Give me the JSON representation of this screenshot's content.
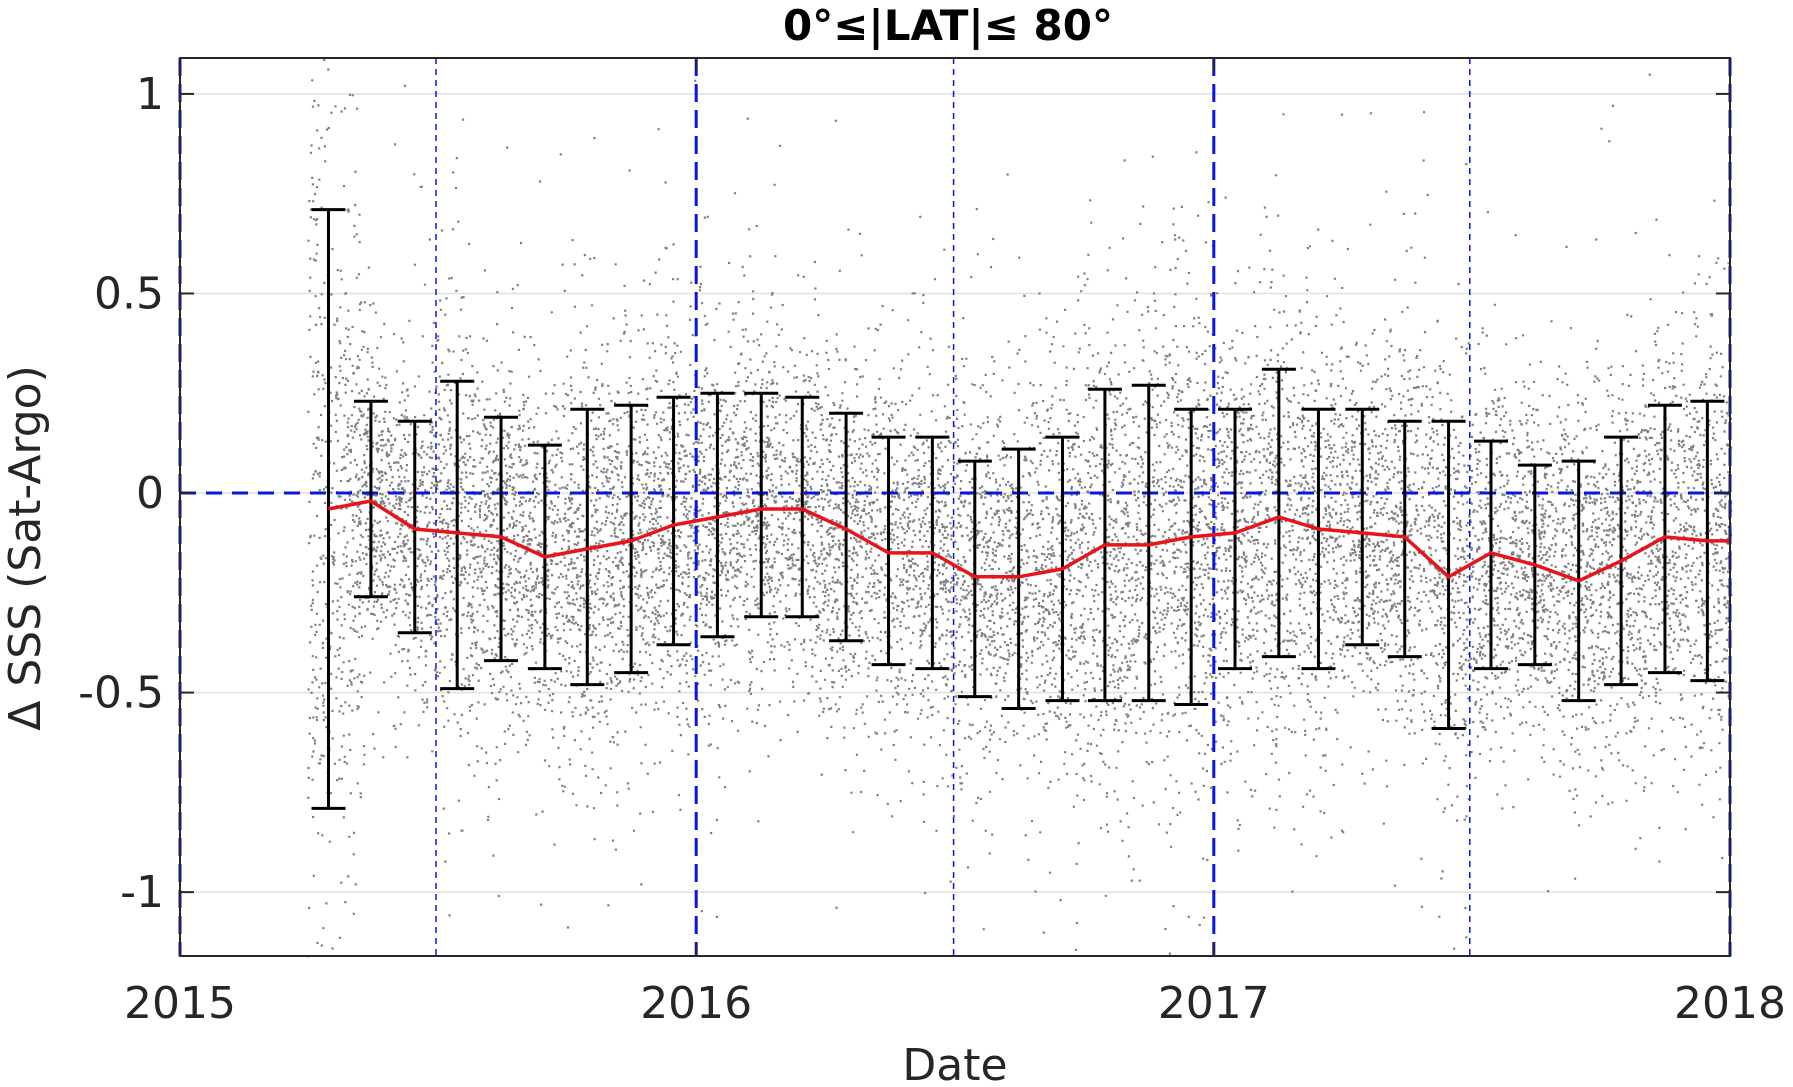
{
  "chart_data": {
    "type": "scatter",
    "title": "0°≤|LAT|≤ 80°",
    "xlabel": "Date",
    "ylabel": "Δ SSS (Sat-Argo)",
    "xlim": [
      "2015-01-01",
      "2018-01-01"
    ],
    "ylim": [
      -1.16,
      1.09
    ],
    "x_ticks": [
      "2015",
      "2016",
      "2017",
      "2018"
    ],
    "y_ticks": [
      1,
      0.5,
      0,
      -0.5,
      -1
    ],
    "y_tick_labels": [
      "1",
      "0.5",
      "0",
      "-0.5",
      "-1"
    ],
    "grid": true,
    "reference_line_y": 0,
    "year_boundaries": [
      "2015-01-01",
      "2016-01-01",
      "2017-01-01",
      "2018-01-01"
    ],
    "mid_year_lines": [
      "2015-07-01",
      "2016-07-01",
      "2017-07-01"
    ],
    "colors": {
      "points": "#808080",
      "mean_line": "#e8141a",
      "error_bars": "#000000",
      "reference_lines": "#0a14e6",
      "grid": "#e0e0e0",
      "axes": "#262626"
    },
    "scatter_x_range": [
      "2015-04-01",
      "2018-01-01"
    ],
    "series": [
      {
        "type": "line_with_error_bars",
        "x": [
          "2015-04-16",
          "2015-05-16",
          "2015-06-16",
          "2015-07-16",
          "2015-08-16",
          "2015-09-16",
          "2015-10-16",
          "2015-11-16",
          "2015-12-16",
          "2016-01-16",
          "2016-02-16",
          "2016-03-16",
          "2016-04-16",
          "2016-05-16",
          "2016-06-16",
          "2016-07-16",
          "2016-08-16",
          "2016-09-16",
          "2016-10-16",
          "2016-11-16",
          "2016-12-16",
          "2017-01-16",
          "2017-02-16",
          "2017-03-16",
          "2017-04-16",
          "2017-05-16",
          "2017-06-16",
          "2017-07-16",
          "2017-08-16",
          "2017-09-16",
          "2017-10-16",
          "2017-11-16",
          "2017-12-16"
        ],
        "values": [
          -0.04,
          -0.02,
          -0.09,
          -0.1,
          -0.11,
          -0.16,
          -0.14,
          -0.12,
          -0.08,
          -0.06,
          -0.04,
          -0.04,
          -0.09,
          -0.15,
          -0.15,
          -0.21,
          -0.21,
          -0.19,
          -0.13,
          -0.13,
          -0.11,
          -0.1,
          -0.06,
          -0.09,
          -0.1,
          -0.11,
          -0.21,
          -0.15,
          -0.18,
          -0.22,
          -0.17,
          -0.11,
          -0.12
        ],
        "upper": [
          0.71,
          0.23,
          0.18,
          0.28,
          0.19,
          0.12,
          0.21,
          0.22,
          0.24,
          0.25,
          0.25,
          0.24,
          0.2,
          0.14,
          0.14,
          0.08,
          0.11,
          0.14,
          0.26,
          0.27,
          0.21,
          0.21,
          0.31,
          0.21,
          0.21,
          0.18,
          0.18,
          0.13,
          0.07,
          0.08,
          0.14,
          0.22,
          0.23
        ],
        "lower": [
          -0.79,
          -0.26,
          -0.35,
          -0.49,
          -0.42,
          -0.44,
          -0.48,
          -0.45,
          -0.38,
          -0.36,
          -0.31,
          -0.31,
          -0.37,
          -0.43,
          -0.44,
          -0.51,
          -0.54,
          -0.52,
          -0.52,
          -0.52,
          -0.53,
          -0.44,
          -0.41,
          -0.44,
          -0.38,
          -0.41,
          -0.59,
          -0.44,
          -0.43,
          -0.52,
          -0.48,
          -0.45,
          -0.47
        ]
      }
    ]
  }
}
